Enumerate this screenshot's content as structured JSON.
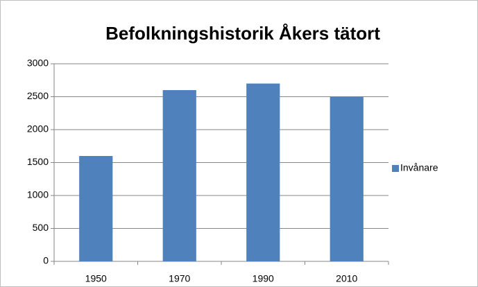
{
  "chart_data": {
    "type": "bar",
    "title": "Befolkningshistorik Åkers tätort",
    "categories": [
      "1950",
      "1970",
      "1990",
      "2010"
    ],
    "series": [
      {
        "name": "Invånare",
        "color": "#4f81bd",
        "values": [
          1600,
          2600,
          2700,
          2500
        ]
      }
    ],
    "ylim": [
      0,
      3000
    ],
    "yticks": [
      0,
      500,
      1000,
      1500,
      2000,
      2500,
      3000
    ],
    "grid": true,
    "legend": "right"
  }
}
